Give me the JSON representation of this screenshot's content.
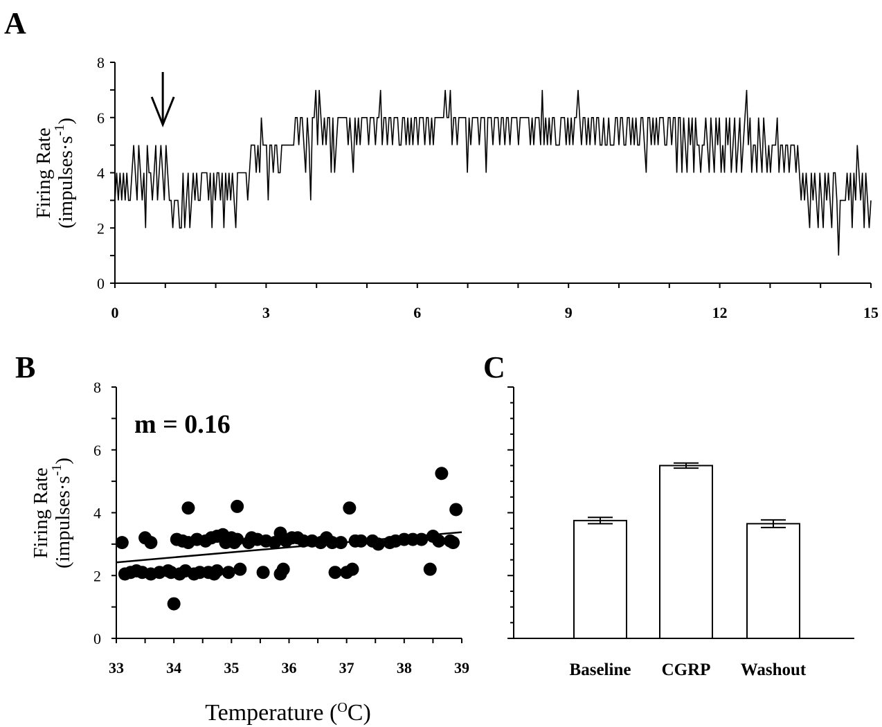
{
  "figure": {
    "panel_labels": [
      "A",
      "B",
      "C"
    ]
  },
  "chart_data": [
    {
      "panel": "A",
      "type": "line",
      "title": "",
      "xlabel": "",
      "ylabel_line1": "Firing Rate",
      "ylabel_line2_main": "(impulses",
      "ylabel_line2_dot": "·",
      "ylabel_line2_s": "s",
      "ylabel_line2_sup": "-1",
      "ylabel_line2_close": ")",
      "xlim": [
        0,
        15
      ],
      "ylim": [
        0,
        8
      ],
      "xticks": [
        "0",
        "3",
        "6",
        "9",
        "12",
        "15"
      ],
      "yticks": [
        "0",
        "2",
        "4",
        "6",
        "8"
      ],
      "annotation": "downward arrow at x≈0.95 (indicates treatment start)",
      "arrow_x": 0.95,
      "series": [
        {
          "values": [
            3,
            4,
            3,
            4,
            3,
            4,
            3,
            4,
            3,
            3,
            4,
            5,
            4,
            3,
            5,
            4,
            3,
            4,
            2,
            5,
            4,
            4,
            3,
            4,
            5,
            3,
            4,
            5,
            4,
            3,
            5,
            4,
            3,
            3,
            2,
            3,
            3,
            3,
            2,
            2,
            4,
            2,
            3,
            4,
            2,
            3,
            4,
            3,
            4,
            3,
            3,
            4,
            4,
            4,
            4,
            3,
            4,
            2,
            4,
            3,
            4,
            4,
            3,
            4,
            2,
            4,
            3,
            4,
            3,
            4,
            3,
            2,
            4,
            4,
            4,
            4,
            4,
            4,
            3,
            4,
            5,
            5,
            5,
            4,
            5,
            4,
            6,
            5,
            5,
            5,
            3,
            5,
            5,
            4,
            5,
            5,
            4,
            4,
            5,
            5,
            5,
            5,
            5,
            5,
            5,
            5,
            6,
            6,
            5,
            6,
            6,
            5,
            4,
            6,
            5,
            3,
            6,
            6,
            7,
            5,
            7,
            6,
            5,
            6,
            5,
            6,
            6,
            4,
            6,
            4,
            5,
            6,
            6,
            6,
            6,
            6,
            6,
            5,
            6,
            5,
            4,
            6,
            5,
            6,
            5,
            6,
            6,
            6,
            6,
            5,
            6,
            6,
            6,
            5,
            6,
            6,
            7,
            5,
            6,
            6,
            5,
            6,
            6,
            5,
            6,
            6,
            6,
            5,
            5,
            6,
            6,
            5,
            6,
            5,
            6,
            5,
            6,
            6,
            5,
            6,
            6,
            6,
            5,
            6,
            6,
            5,
            6,
            5,
            6,
            6,
            6,
            6,
            6,
            6,
            7,
            6,
            6,
            7,
            5,
            6,
            6,
            5,
            6,
            6,
            6,
            6,
            6,
            4,
            6,
            5,
            6,
            6,
            6,
            6,
            5,
            6,
            6,
            6,
            4,
            6,
            6,
            6,
            5,
            6,
            6,
            6,
            5,
            6,
            6,
            5,
            6,
            6,
            5,
            6,
            6,
            6,
            6,
            5,
            6,
            6,
            6,
            6,
            6,
            6,
            5,
            6,
            5,
            6,
            6,
            6,
            5,
            7,
            5,
            6,
            5,
            6,
            5,
            6,
            6,
            5,
            5,
            5,
            6,
            6,
            6,
            5,
            6,
            5,
            6,
            5,
            6,
            6,
            7,
            6,
            5,
            6,
            6,
            5,
            6,
            5,
            6,
            6,
            5,
            6,
            6,
            5,
            5,
            6,
            5,
            5,
            6,
            5,
            5,
            5,
            6,
            6,
            5,
            6,
            6,
            5,
            5,
            6,
            6,
            5,
            6,
            5,
            6,
            5,
            5,
            6,
            6,
            5,
            4,
            6,
            6,
            5,
            6,
            5,
            6,
            5,
            6,
            6,
            6,
            5,
            5,
            6,
            6,
            5,
            6,
            6,
            4,
            6,
            6,
            4,
            6,
            5,
            4,
            6,
            5,
            6,
            4,
            6,
            5,
            5,
            4,
            5,
            5,
            6,
            5,
            4,
            6,
            5,
            4,
            6,
            5,
            6,
            4,
            5,
            4,
            6,
            5,
            6,
            4,
            5,
            6,
            4,
            5,
            6,
            4,
            5,
            6,
            7,
            5,
            6,
            4,
            5,
            5,
            4,
            6,
            5,
            4,
            6,
            5,
            4,
            5,
            4,
            5,
            5,
            5,
            6,
            4,
            5,
            5,
            4,
            5,
            5,
            4,
            5,
            5,
            5,
            4,
            5,
            4,
            3,
            4,
            3,
            4,
            3,
            2,
            4,
            3,
            4,
            3,
            2,
            4,
            3,
            2,
            4,
            3,
            4,
            3,
            2,
            4,
            4,
            3,
            1,
            3,
            3,
            3,
            3,
            4,
            3,
            4,
            2,
            4,
            3,
            5,
            4,
            3,
            4,
            2,
            4,
            3,
            2,
            3
          ],
          "x_start": 0,
          "x_end": 15
        }
      ]
    },
    {
      "panel": "B",
      "type": "scatter",
      "title": "",
      "xlabel_main": "Temperature (",
      "xlabel_sup": "O",
      "xlabel_unit": "C)",
      "ylabel_line1": "Firing Rate",
      "ylabel_line2_main": "(impulses",
      "ylabel_line2_dot": "·",
      "ylabel_line2_s": "s",
      "ylabel_line2_sup": "-1",
      "ylabel_line2_close": ")",
      "xlim": [
        33,
        39
      ],
      "ylim": [
        0,
        8
      ],
      "xticks": [
        "33",
        "34",
        "35",
        "36",
        "37",
        "38",
        "39"
      ],
      "yticks": [
        "0",
        "2",
        "4",
        "6",
        "8"
      ],
      "annotation": "m = 0.16",
      "fit_line": {
        "x": [
          33.0,
          39.0
        ],
        "y": [
          2.42,
          3.38
        ]
      },
      "points": [
        [
          33.1,
          3.05
        ],
        [
          33.15,
          2.05
        ],
        [
          33.25,
          2.1
        ],
        [
          33.35,
          2.15
        ],
        [
          33.45,
          2.1
        ],
        [
          33.5,
          3.2
        ],
        [
          33.6,
          3.05
        ],
        [
          33.6,
          2.05
        ],
        [
          33.75,
          2.1
        ],
        [
          33.9,
          2.15
        ],
        [
          33.95,
          2.1
        ],
        [
          34.0,
          1.1
        ],
        [
          34.05,
          3.15
        ],
        [
          34.1,
          2.05
        ],
        [
          34.15,
          3.1
        ],
        [
          34.2,
          2.15
        ],
        [
          34.25,
          4.15
        ],
        [
          34.25,
          3.05
        ],
        [
          34.35,
          2.05
        ],
        [
          34.4,
          3.15
        ],
        [
          34.45,
          2.1
        ],
        [
          34.55,
          3.1
        ],
        [
          34.6,
          2.1
        ],
        [
          34.65,
          3.2
        ],
        [
          34.7,
          2.05
        ],
        [
          34.75,
          3.25
        ],
        [
          34.75,
          2.15
        ],
        [
          34.85,
          3.3
        ],
        [
          34.9,
          3.05
        ],
        [
          34.95,
          2.1
        ],
        [
          35.0,
          3.2
        ],
        [
          35.05,
          3.05
        ],
        [
          35.1,
          4.2
        ],
        [
          35.1,
          3.15
        ],
        [
          35.15,
          2.2
        ],
        [
          35.3,
          3.05
        ],
        [
          35.35,
          3.2
        ],
        [
          35.45,
          3.15
        ],
        [
          35.55,
          2.1
        ],
        [
          35.6,
          3.1
        ],
        [
          35.75,
          3.05
        ],
        [
          35.85,
          3.35
        ],
        [
          35.85,
          2.05
        ],
        [
          35.9,
          2.2
        ],
        [
          35.95,
          3.1
        ],
        [
          36.05,
          3.2
        ],
        [
          36.15,
          3.2
        ],
        [
          36.25,
          3.1
        ],
        [
          36.4,
          3.1
        ],
        [
          36.55,
          3.05
        ],
        [
          36.65,
          3.2
        ],
        [
          36.75,
          3.05
        ],
        [
          36.8,
          2.1
        ],
        [
          36.9,
          3.05
        ],
        [
          37.0,
          2.1
        ],
        [
          37.05,
          4.15
        ],
        [
          37.1,
          2.2
        ],
        [
          37.15,
          3.1
        ],
        [
          37.25,
          3.1
        ],
        [
          37.45,
          3.1
        ],
        [
          37.55,
          3.0
        ],
        [
          37.75,
          3.05
        ],
        [
          37.85,
          3.1
        ],
        [
          38.0,
          3.15
        ],
        [
          38.15,
          3.15
        ],
        [
          38.3,
          3.15
        ],
        [
          38.45,
          2.2
        ],
        [
          38.5,
          3.25
        ],
        [
          38.6,
          3.1
        ],
        [
          38.65,
          5.25
        ],
        [
          38.8,
          3.1
        ],
        [
          38.85,
          3.05
        ],
        [
          38.9,
          4.1
        ]
      ]
    },
    {
      "panel": "C",
      "type": "bar",
      "title": "",
      "xlabel": "",
      "ylabel": "",
      "ylim": [
        0,
        8
      ],
      "categories": [
        "Baseline",
        "CGRP",
        "Washout"
      ],
      "values": [
        3.75,
        5.5,
        3.65
      ],
      "errors": [
        0.1,
        0.08,
        0.12
      ]
    }
  ]
}
